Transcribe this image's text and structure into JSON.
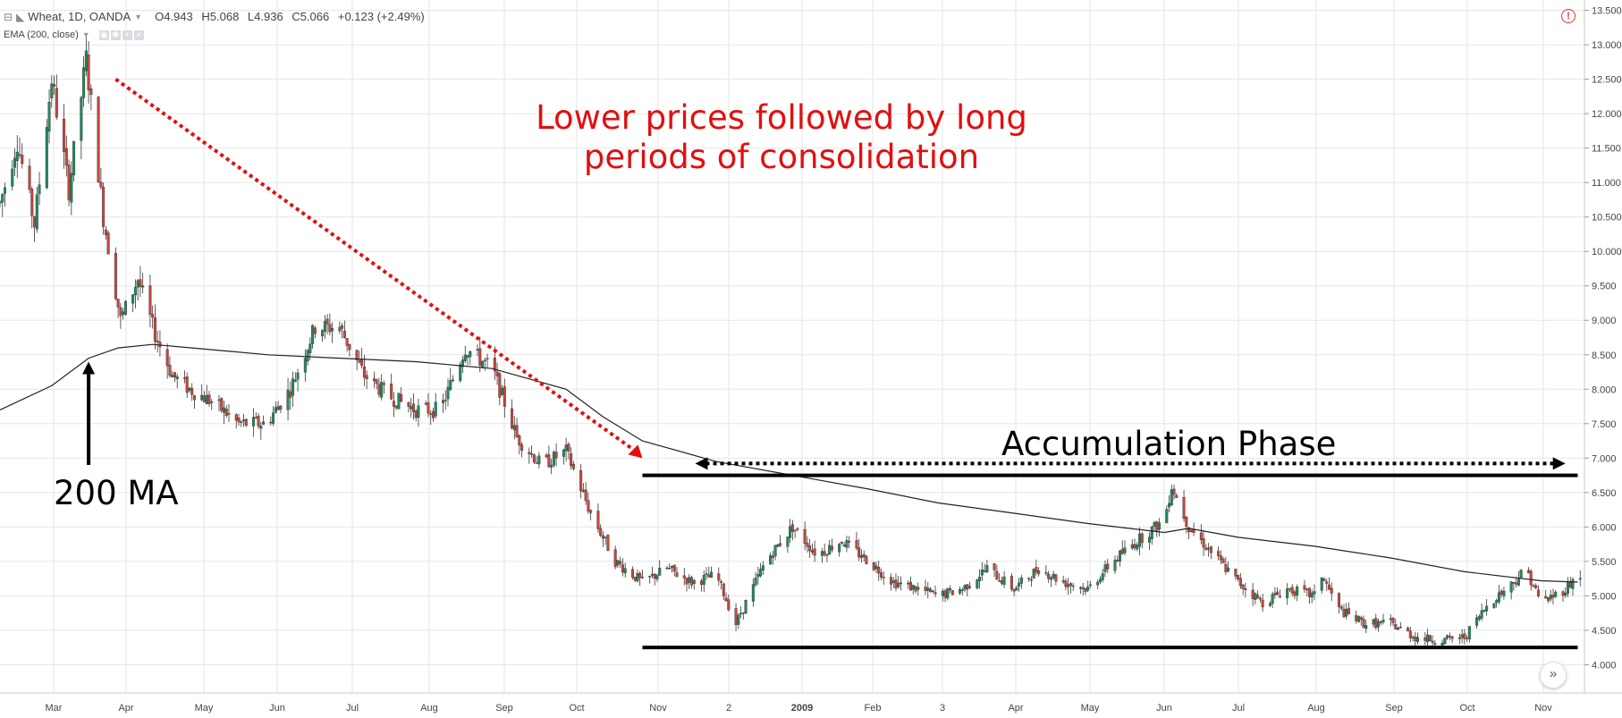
{
  "header": {
    "symbol": "Wheat, 1D, OANDA",
    "open": "O4.943",
    "high": "H5.068",
    "low": "L4.936",
    "close": "C5.066",
    "change": "+0.123 (+2.49%)",
    "indicator": "EMA (200, close)"
  },
  "annotations": {
    "title_line1": "Lower prices followed by long",
    "title_line2": "periods of consolidation",
    "ma_label": "200 MA",
    "phase_label": "Accumulation Phase"
  },
  "colors": {
    "up": "#1f8a5e",
    "down": "#c8463c",
    "ema": "#222222",
    "annotation_red": "#e01010",
    "grid": "#e6e6e6"
  },
  "icons": {
    "collapse": "minus-square-icon",
    "alert": "alert-circle-icon",
    "scroll": "double-chevron-right-icon"
  },
  "chart_data": {
    "type": "candlestick",
    "symbol": "Wheat",
    "interval": "1D",
    "source": "OANDA",
    "ylim": [
      3.85,
      13.65
    ],
    "y_ticks": [
      4.0,
      4.5,
      5.0,
      5.5,
      6.0,
      6.5,
      7.0,
      7.5,
      8.0,
      8.5,
      9.0,
      9.5,
      10.0,
      10.5,
      11.0,
      11.5,
      12.0,
      12.5,
      13.0,
      13.5
    ],
    "y_tick_labels": [
      "4.000",
      "4.500",
      "5.000",
      "5.500",
      "6.000",
      "6.500",
      "7.000",
      "7.500",
      "8.000",
      "8.500",
      "9.000",
      "9.500",
      "10.000",
      "10.500",
      "11.000",
      "11.500",
      "12.000",
      "12.500",
      "13.000",
      "13.500"
    ],
    "x_ticks": [
      "Mar",
      "Apr",
      "May",
      "Jun",
      "Jul",
      "Aug",
      "Sep",
      "Oct",
      "Nov",
      "2",
      "2009",
      "Feb",
      "3",
      "Apr",
      "May",
      "Jun",
      "Jul",
      "Aug",
      "Sep",
      "Oct",
      "Nov"
    ],
    "x_tick_bold": "2009",
    "price_path": [
      [
        "2008-02-13",
        10.7
      ],
      [
        "2008-02-20",
        11.6
      ],
      [
        "2008-02-27",
        10.4
      ],
      [
        "2008-03-05",
        12.5
      ],
      [
        "2008-03-12",
        10.9
      ],
      [
        "2008-03-19",
        12.8
      ],
      [
        "2008-03-26",
        10.5
      ],
      [
        "2008-04-02",
        9.0
      ],
      [
        "2008-04-09",
        9.6
      ],
      [
        "2008-04-16",
        8.8
      ],
      [
        "2008-04-23",
        8.2
      ],
      [
        "2008-04-30",
        8.0
      ],
      [
        "2008-05-10",
        7.8
      ],
      [
        "2008-05-20",
        7.5
      ],
      [
        "2008-05-31",
        7.5
      ],
      [
        "2008-06-10",
        8.0
      ],
      [
        "2008-06-20",
        8.9
      ],
      [
        "2008-06-30",
        8.9
      ],
      [
        "2008-07-10",
        8.2
      ],
      [
        "2008-07-20",
        7.9
      ],
      [
        "2008-07-31",
        7.7
      ],
      [
        "2008-08-10",
        7.7
      ],
      [
        "2008-08-20",
        8.6
      ],
      [
        "2008-08-31",
        8.3
      ],
      [
        "2008-09-10",
        7.3
      ],
      [
        "2008-09-20",
        6.9
      ],
      [
        "2008-09-30",
        7.1
      ],
      [
        "2008-10-10",
        6.2
      ],
      [
        "2008-10-20",
        5.5
      ],
      [
        "2008-10-31",
        5.2
      ],
      [
        "2008-11-10",
        5.4
      ],
      [
        "2008-11-20",
        5.2
      ],
      [
        "2008-11-30",
        5.3
      ],
      [
        "2008-12-08",
        4.6
      ],
      [
        "2008-12-20",
        5.5
      ],
      [
        "2008-12-31",
        6.0
      ],
      [
        "2009-01-10",
        5.6
      ],
      [
        "2009-01-20",
        5.8
      ],
      [
        "2009-01-31",
        5.5
      ],
      [
        "2009-02-10",
        5.2
      ],
      [
        "2009-02-20",
        5.1
      ],
      [
        "2009-02-28",
        5.0
      ],
      [
        "2009-03-10",
        5.1
      ],
      [
        "2009-03-20",
        5.4
      ],
      [
        "2009-03-31",
        5.1
      ],
      [
        "2009-04-10",
        5.4
      ],
      [
        "2009-04-20",
        5.2
      ],
      [
        "2009-04-30",
        5.1
      ],
      [
        "2009-05-10",
        5.5
      ],
      [
        "2009-05-20",
        5.8
      ],
      [
        "2009-05-31",
        6.1
      ],
      [
        "2009-06-03",
        6.6
      ],
      [
        "2009-06-10",
        6.0
      ],
      [
        "2009-06-20",
        5.6
      ],
      [
        "2009-06-30",
        5.2
      ],
      [
        "2009-07-10",
        4.9
      ],
      [
        "2009-07-20",
        5.1
      ],
      [
        "2009-07-31",
        5.0
      ],
      [
        "2009-08-03",
        5.3
      ],
      [
        "2009-08-10",
        4.8
      ],
      [
        "2009-08-20",
        4.6
      ],
      [
        "2009-08-31",
        4.6
      ],
      [
        "2009-09-10",
        4.4
      ],
      [
        "2009-09-20",
        4.35
      ],
      [
        "2009-09-30",
        4.4
      ],
      [
        "2009-10-10",
        4.9
      ],
      [
        "2009-10-20",
        5.2
      ],
      [
        "2009-10-25",
        5.4
      ],
      [
        "2009-10-31",
        4.9
      ],
      [
        "2009-11-10",
        5.1
      ],
      [
        "2009-11-15",
        5.3
      ]
    ],
    "ema200": [
      [
        "2008-02-13",
        7.7
      ],
      [
        "2008-03-05",
        8.05
      ],
      [
        "2008-03-20",
        8.45
      ],
      [
        "2008-04-01",
        8.6
      ],
      [
        "2008-04-15",
        8.65
      ],
      [
        "2008-05-01",
        8.6
      ],
      [
        "2008-06-01",
        8.5
      ],
      [
        "2008-06-30",
        8.45
      ],
      [
        "2008-07-31",
        8.4
      ],
      [
        "2008-08-31",
        8.3
      ],
      [
        "2008-09-30",
        8.0
      ],
      [
        "2008-10-15",
        7.6
      ],
      [
        "2008-10-31",
        7.25
      ],
      [
        "2008-11-30",
        6.95
      ],
      [
        "2008-12-31",
        6.75
      ],
      [
        "2009-01-31",
        6.55
      ],
      [
        "2009-02-28",
        6.35
      ],
      [
        "2009-03-31",
        6.2
      ],
      [
        "2009-04-30",
        6.05
      ],
      [
        "2009-05-31",
        5.92
      ],
      [
        "2009-06-10",
        5.98
      ],
      [
        "2009-06-30",
        5.85
      ],
      [
        "2009-07-31",
        5.72
      ],
      [
        "2009-08-31",
        5.55
      ],
      [
        "2009-09-30",
        5.35
      ],
      [
        "2009-10-31",
        5.22
      ],
      [
        "2009-11-15",
        5.2
      ]
    ],
    "annotations": [
      {
        "kind": "dotted-arrow",
        "color": "red",
        "from": [
          "2008-03-31",
          12.5
        ],
        "to": [
          "2008-10-31",
          7.0
        ]
      },
      {
        "kind": "arrow-up",
        "color": "black",
        "label": "200 MA",
        "date": "2008-03-20",
        "from_price": 6.9,
        "to_price": 8.4
      },
      {
        "kind": "horizontal-line",
        "price": 6.75,
        "from": "2008-10-31",
        "to": "2009-11-15"
      },
      {
        "kind": "horizontal-line",
        "price": 4.25,
        "from": "2008-10-31",
        "to": "2009-11-15"
      },
      {
        "kind": "dotted-double-arrow",
        "label": "Accumulation Phase",
        "price": 7.0,
        "from": "2008-11-20",
        "to": "2009-11-10"
      }
    ]
  }
}
